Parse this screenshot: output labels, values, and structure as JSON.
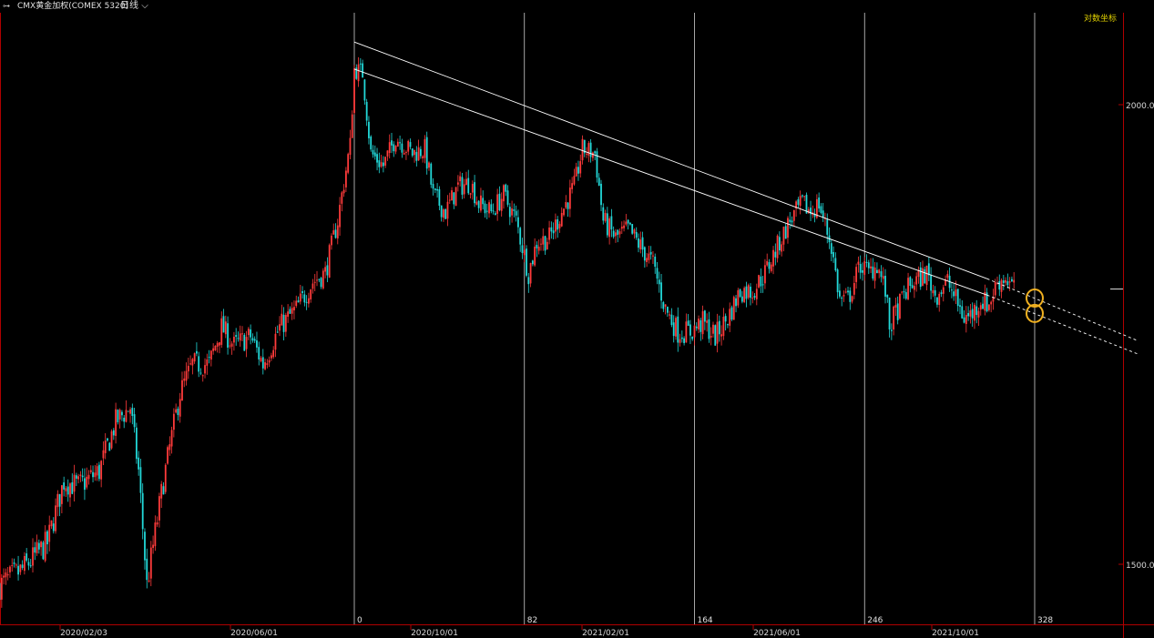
{
  "header": {
    "title": "CMX黄金加权(COMEX 5320)",
    "period": "日线",
    "period_chevron": "⌵",
    "instrument_icon": "link-icon"
  },
  "chart_data": {
    "type": "candlestick",
    "title": "CMX黄金加权(COMEX 5320)",
    "scale_mode_label": "对数坐标",
    "y_scale": "log",
    "ylim": [
      1455,
      2108
    ],
    "y_ticks": [
      {
        "value": 2000,
        "label": "2000.0"
      },
      {
        "value": 1500,
        "label": "1500.0"
      }
    ],
    "x_ticks": [
      "2020/02/03",
      "2020/06/01",
      "2020/10/01",
      "2021/02/01",
      "2021/06/01",
      "2021/10/01"
    ],
    "bar_count_markers": [
      "0",
      "82",
      "164",
      "246",
      "328"
    ],
    "up_color": "#ff3b3b",
    "down_color": "#22d8d8",
    "trendline_color": "#ffffff",
    "highlight_color": "#f0b020",
    "current_price": 1782,
    "trendlines": [
      {
        "from": {
          "bar": 0,
          "price": 2080
        },
        "to": {
          "bar": 328,
          "price": 1772
        }
      },
      {
        "from": {
          "bar": 0,
          "price": 2045
        },
        "to": {
          "bar": 328,
          "price": 1755
        }
      }
    ],
    "highlights": [
      {
        "bar": 328,
        "price": 1772
      },
      {
        "bar": 328,
        "price": 1755
      }
    ],
    "price_path": [
      [
        -171,
        1480
      ],
      [
        -160,
        1495
      ],
      [
        -148,
        1520
      ],
      [
        -140,
        1580
      ],
      [
        -133,
        1575
      ],
      [
        -123,
        1590
      ],
      [
        -115,
        1640
      ],
      [
        -108,
        1655
      ],
      [
        -104,
        1590
      ],
      [
        -100,
        1480
      ],
      [
        -92,
        1580
      ],
      [
        -84,
        1670
      ],
      [
        -78,
        1700
      ],
      [
        -70,
        1700
      ],
      [
        -64,
        1740
      ],
      [
        -58,
        1720
      ],
      [
        -50,
        1730
      ],
      [
        -44,
        1700
      ],
      [
        -36,
        1740
      ],
      [
        -28,
        1760
      ],
      [
        -20,
        1790
      ],
      [
        -14,
        1800
      ],
      [
        -8,
        1860
      ],
      [
        -2,
        1950
      ],
      [
        0,
        2045
      ],
      [
        4,
        2040
      ],
      [
        8,
        1940
      ],
      [
        14,
        1925
      ],
      [
        20,
        1960
      ],
      [
        28,
        1940
      ],
      [
        34,
        1945
      ],
      [
        38,
        1890
      ],
      [
        44,
        1870
      ],
      [
        50,
        1900
      ],
      [
        56,
        1905
      ],
      [
        60,
        1880
      ],
      [
        66,
        1870
      ],
      [
        72,
        1890
      ],
      [
        78,
        1860
      ],
      [
        84,
        1800
      ],
      [
        88,
        1835
      ],
      [
        94,
        1840
      ],
      [
        100,
        1870
      ],
      [
        106,
        1900
      ],
      [
        110,
        1945
      ],
      [
        116,
        1940
      ],
      [
        120,
        1860
      ],
      [
        126,
        1840
      ],
      [
        132,
        1850
      ],
      [
        138,
        1830
      ],
      [
        144,
        1810
      ],
      [
        150,
        1760
      ],
      [
        156,
        1735
      ],
      [
        162,
        1735
      ],
      [
        168,
        1745
      ],
      [
        174,
        1730
      ],
      [
        180,
        1750
      ],
      [
        186,
        1780
      ],
      [
        192,
        1780
      ],
      [
        198,
        1800
      ],
      [
        204,
        1830
      ],
      [
        210,
        1860
      ],
      [
        216,
        1880
      ],
      [
        220,
        1870
      ],
      [
        224,
        1880
      ],
      [
        230,
        1830
      ],
      [
        234,
        1770
      ],
      [
        238,
        1770
      ],
      [
        244,
        1810
      ],
      [
        248,
        1800
      ],
      [
        252,
        1810
      ],
      [
        256,
        1780
      ],
      [
        258,
        1740
      ],
      [
        262,
        1760
      ],
      [
        266,
        1780
      ],
      [
        270,
        1790
      ],
      [
        276,
        1800
      ],
      [
        280,
        1775
      ],
      [
        286,
        1790
      ],
      [
        290,
        1770
      ],
      [
        294,
        1750
      ],
      [
        298,
        1755
      ],
      [
        302,
        1770
      ],
      [
        306,
        1765
      ],
      [
        310,
        1790
      ],
      [
        314,
        1795
      ],
      [
        318,
        1782
      ]
    ]
  }
}
